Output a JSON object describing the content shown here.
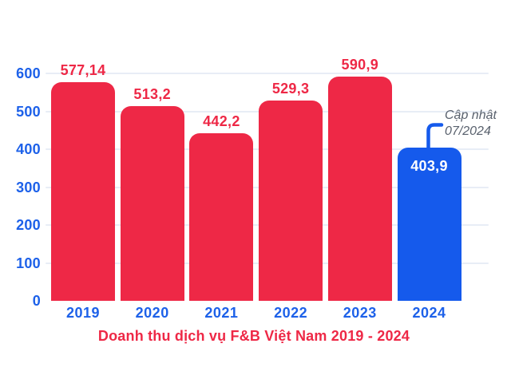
{
  "chart_data": {
    "type": "bar",
    "title": "Doanh thu dịch vụ F&B Việt Nam 2019 - 2024",
    "categories": [
      "2019",
      "2020",
      "2021",
      "2022",
      "2023",
      "2024"
    ],
    "values": [
      577.14,
      513.2,
      442.2,
      529.3,
      590.9,
      403.9
    ],
    "value_labels": [
      "577,14",
      "513,2",
      "442,2",
      "529,3",
      "590,9",
      "403,9"
    ],
    "label_inside": [
      false,
      false,
      false,
      false,
      false,
      true
    ],
    "bar_colors": [
      "#ee2846",
      "#ee2846",
      "#ee2846",
      "#ee2846",
      "#ee2846",
      "#155aec"
    ],
    "ylim": [
      0,
      600
    ],
    "ytick_values": [
      600,
      500,
      400,
      300,
      200,
      100,
      0
    ],
    "ytick_labels": [
      "600",
      "500",
      "400",
      "300",
      "200",
      "100",
      "0"
    ],
    "grid": true,
    "legend": "none",
    "annotation": {
      "line1": "Cập nhật",
      "line2": "07/2024",
      "points_to_category": "2024"
    },
    "colors": {
      "bar_red": "#ee2846",
      "bar_blue": "#155aec",
      "axis_label_blue": "#1d61e9",
      "value_label_red": "#ee2846",
      "value_label_inside_white": "#ffffff",
      "title_red": "#ee2846",
      "gridline": "#e8edf6",
      "annotation_text": "#59616d",
      "background": "#ffffff"
    }
  }
}
